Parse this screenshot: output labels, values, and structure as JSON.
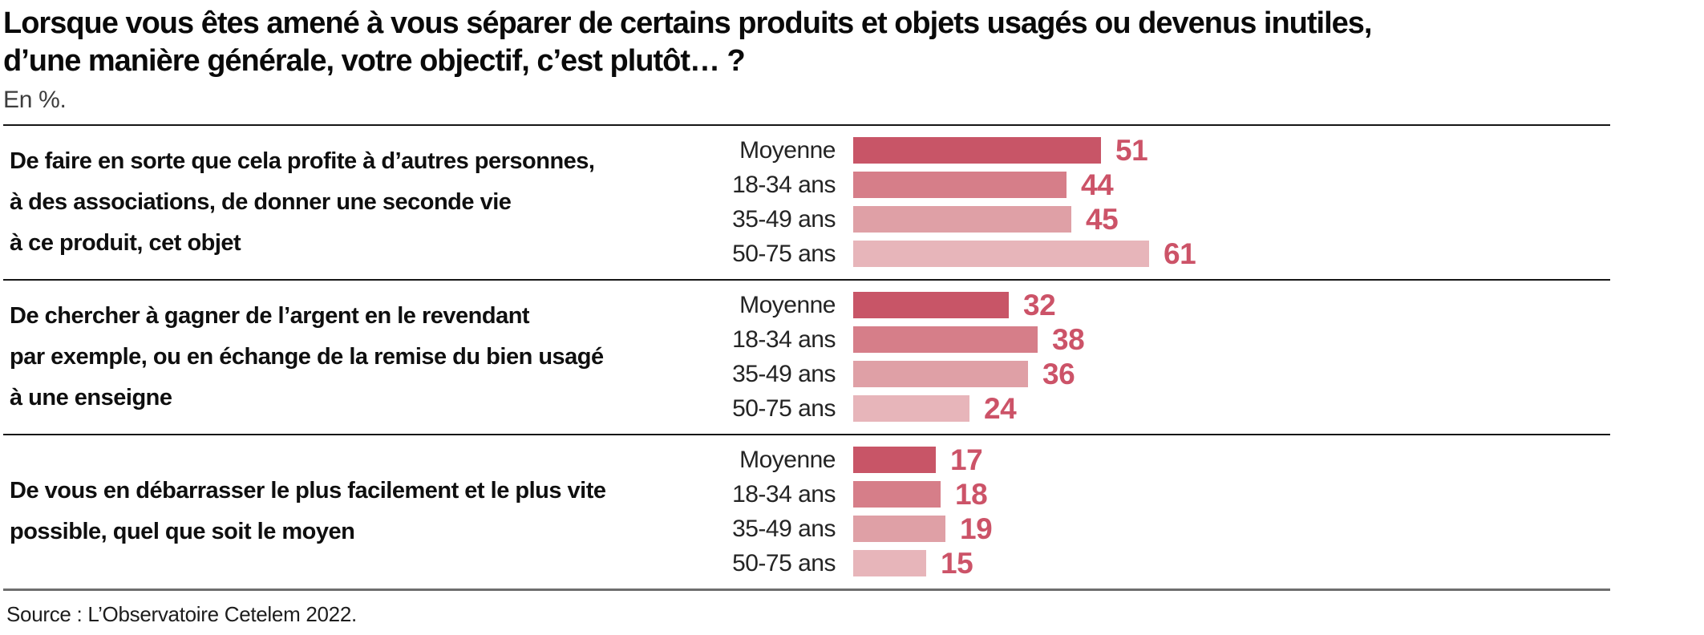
{
  "header": {
    "title_line1": "Lorsque vous êtes amené à vous séparer de certains produits et objets usagés ou devenus inutiles,",
    "title_line2": "d’une manière générale, votre objectif, c’est plutôt… ?",
    "subtitle": "En %."
  },
  "chart_data": {
    "type": "bar",
    "orientation": "horizontal",
    "unit": "%",
    "title": "Lorsque vous êtes amené à vous séparer de certains produits et objets usagés ou devenus inutiles, d’une manière générale, votre objectif, c’est plutôt… ?",
    "categories": [
      "Moyenne",
      "18-34 ans",
      "35-49 ans",
      "50-75 ans"
    ],
    "groups": [
      {
        "label": "De faire en sorte que cela profite à d’autres personnes, à des associations, de donner une seconde vie à ce produit, cet objet",
        "label_lines": [
          "De faire en sorte que cela profite à d’autres personnes,",
          "à des associations, de donner une seconde vie",
          "à ce produit, cet objet"
        ],
        "values": [
          51,
          44,
          45,
          61
        ]
      },
      {
        "label": "De chercher à gagner de l’argent en le revendant par exemple, ou en échange de la remise du bien usagé à une enseigne",
        "label_lines": [
          "De chercher à gagner de l’argent en le revendant",
          "par exemple, ou en échange de la remise du bien usagé",
          "à une enseigne"
        ],
        "values": [
          32,
          38,
          36,
          24
        ]
      },
      {
        "label": "De vous en débarrasser le plus facilement et le plus vite possible, quel que soit le moyen",
        "label_lines": [
          "De vous en débarrasser le plus facilement et le plus vite",
          "possible, quel que soit le moyen"
        ],
        "values": [
          17,
          18,
          19,
          15
        ]
      }
    ],
    "bar_colors": [
      "#c85567",
      "#d67e89",
      "#dfa0a6",
      "#e7b5ba"
    ],
    "value_label_color": "#cc5368",
    "xlim": [
      0,
      66
    ],
    "legend_position": "none",
    "grid": false
  },
  "footer": {
    "source": "Source : L’Observatoire Cetelem 2022."
  }
}
